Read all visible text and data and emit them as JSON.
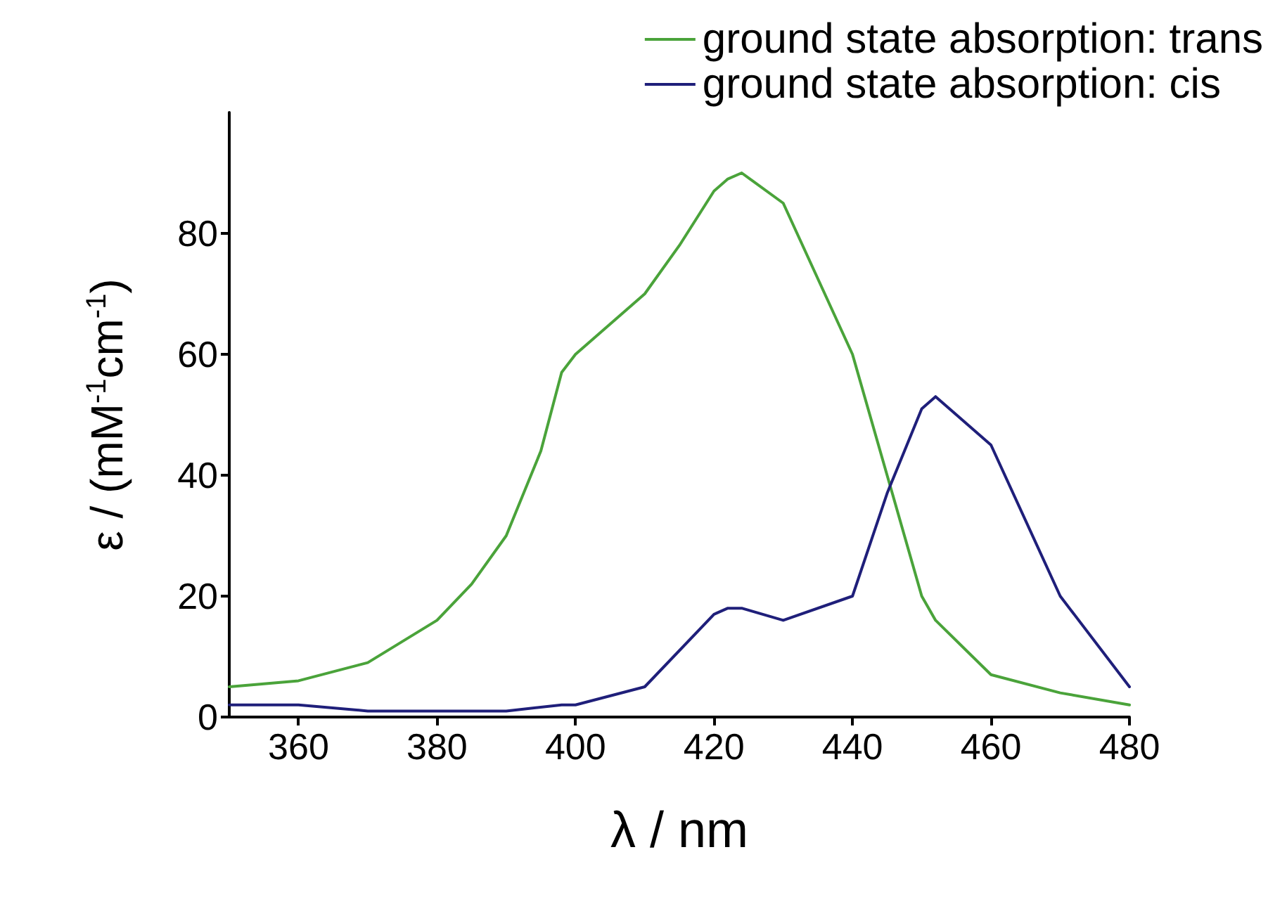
{
  "chart_data": {
    "type": "line",
    "xlabel": "λ / nm",
    "ylabel": "ε / (mM$^{-1}$cm$^{-1}$)",
    "xlim": [
      350,
      480
    ],
    "xticks": [
      360,
      380,
      400,
      420,
      440,
      460,
      480
    ],
    "ylim": [
      0,
      100
    ],
    "yticks": [
      0,
      20,
      40,
      60,
      80
    ],
    "grid": false,
    "legend": "top right",
    "marker": "none",
    "line_style": "solid",
    "series": [
      {
        "name": "ground state absorption: trans",
        "color": "#4aa33a",
        "x": [
          350,
          360,
          370,
          380,
          385,
          390,
          395,
          398,
          400,
          410,
          415,
          420,
          422,
          424,
          430,
          440,
          445,
          450,
          452,
          460,
          470,
          480
        ],
        "values": [
          5,
          6,
          9,
          16,
          22,
          30,
          44,
          57,
          60,
          70,
          78,
          87,
          89,
          90,
          85,
          60,
          40,
          20,
          16,
          7,
          4,
          2
        ]
      },
      {
        "name": "ground state absorption: cis",
        "color": "#1f1f7a",
        "x": [
          350,
          360,
          370,
          380,
          390,
          398,
          400,
          410,
          420,
          422,
          424,
          430,
          440,
          445,
          450,
          452,
          455,
          460,
          470,
          480
        ],
        "values": [
          2,
          2,
          1,
          1,
          1,
          2,
          2,
          5,
          17,
          18,
          18,
          16,
          20,
          37,
          51,
          53,
          50,
          45,
          20,
          5
        ]
      }
    ]
  }
}
